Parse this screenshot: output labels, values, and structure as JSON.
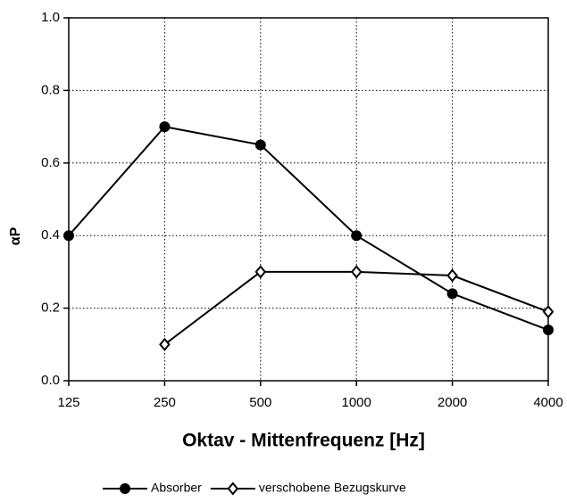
{
  "chart_data": {
    "type": "line",
    "x_label": "Oktav - Mittenfrequenz [Hz]",
    "y_label": "αP",
    "categories": [
      "125",
      "250",
      "500",
      "1000",
      "2000",
      "4000"
    ],
    "series": [
      {
        "name": "Absorber",
        "color": "#000000",
        "marker": "circle",
        "values": [
          0.4,
          0.7,
          0.65,
          0.4,
          0.24,
          0.14
        ]
      },
      {
        "name": "verschobene Bezugskurve",
        "color": "#000000",
        "marker": "diamond",
        "values": [
          null,
          0.1,
          0.3,
          0.3,
          0.29,
          0.19
        ]
      }
    ],
    "ylim": [
      0,
      1
    ],
    "yticks": [
      {
        "value": 0,
        "label": "0.0"
      },
      0.2,
      0.4,
      0.6,
      0.8,
      {
        "value": 1,
        "label": "1.0"
      }
    ],
    "grid": true,
    "legend": "bottom"
  }
}
